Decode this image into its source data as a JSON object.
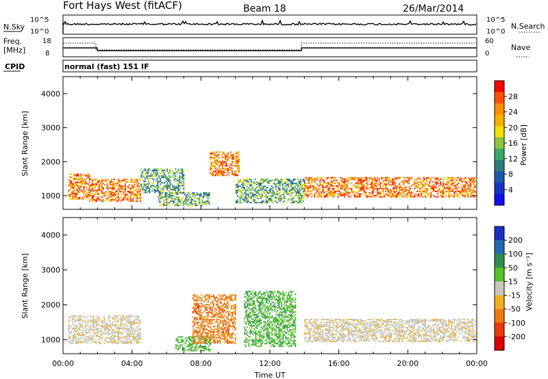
{
  "header": {
    "station": "Fort Hays West (fitACF)",
    "beam": "Beam 18",
    "date": "26/Mar/2014"
  },
  "status_panels": {
    "nsky": {
      "label": "N.Sky",
      "right_label": "N.Search",
      "left_ticks": [
        "10^5",
        "10^0"
      ],
      "right_ticks": [
        "10^5",
        "10^0"
      ]
    },
    "freq": {
      "label_line1": "Freq.",
      "label_line2": "[MHz]",
      "right_label": "Nave",
      "left_ticks": [
        "18",
        "8"
      ],
      "right_ticks": [
        "60",
        "0"
      ]
    },
    "cpid_label": "CPID",
    "cpid_text": "normal (fast) 151 IF"
  },
  "chart_data": [
    {
      "type": "heatmap",
      "name": "power",
      "ylabel": "Slant Range [km]",
      "xlabel": "",
      "yticks": [
        "4000",
        "3000",
        "2000",
        "1000"
      ],
      "ylim": [
        600,
        4500
      ],
      "xlim": [
        0,
        24
      ],
      "colorbar": {
        "label": "Power [dB]",
        "ticks": [
          "28",
          "24",
          "20",
          "16",
          "12",
          "8",
          "4"
        ],
        "colors": [
          "#ff0000",
          "#ff5000",
          "#ff8c00",
          "#f5b000",
          "#f2e000",
          "#8bc53f",
          "#3aa66a",
          "#2b7f7a",
          "#1e57a8",
          "#1434c8",
          "#1010e6"
        ]
      },
      "bands": [
        {
          "t0": 0.3,
          "t1": 1.5,
          "r0": 900,
          "r1": 1650,
          "level": "strong"
        },
        {
          "t0": 1.5,
          "t1": 4.5,
          "r0": 850,
          "r1": 1500,
          "level": "strong"
        },
        {
          "t0": 4.5,
          "t1": 7.0,
          "r0": 1100,
          "r1": 1800,
          "level": "medium"
        },
        {
          "t0": 5.5,
          "t1": 8.5,
          "r0": 700,
          "r1": 1100,
          "level": "medium"
        },
        {
          "t0": 8.5,
          "t1": 10.2,
          "r0": 1600,
          "r1": 2300,
          "level": "strong"
        },
        {
          "t0": 10.0,
          "t1": 14.0,
          "r0": 800,
          "r1": 1500,
          "level": "medium"
        },
        {
          "t0": 14.0,
          "t1": 23.9,
          "r0": 950,
          "r1": 1550,
          "level": "strong"
        }
      ]
    },
    {
      "type": "heatmap",
      "name": "velocity",
      "ylabel": "Slant Range [km]",
      "xlabel": "Time UT",
      "yticks": [
        "4000",
        "3000",
        "2000",
        "1000"
      ],
      "xticks": [
        "00:00",
        "04:00",
        "08:00",
        "12:00",
        "16:00",
        "20:00",
        "00:00"
      ],
      "ylim": [
        600,
        4500
      ],
      "xlim": [
        0,
        24
      ],
      "colorbar": {
        "label": "Velocity [m s⁻¹]",
        "ticks": [
          "200",
          "100",
          "50",
          "15",
          "-15",
          "-50",
          "-100",
          "-200"
        ],
        "colors": [
          "#1a2fbf",
          "#1f6bb0",
          "#2f8f4a",
          "#55c22b",
          "#c8c8c0",
          "#f2b01e",
          "#f07a10",
          "#e83a0a",
          "#dd0000"
        ]
      },
      "bands": [
        {
          "t0": 0.3,
          "t1": 4.5,
          "r0": 900,
          "r1": 1700,
          "level": "ground"
        },
        {
          "t0": 6.5,
          "t1": 8.5,
          "r0": 700,
          "r1": 1100,
          "level": "positive"
        },
        {
          "t0": 7.5,
          "t1": 10.0,
          "r0": 900,
          "r1": 2300,
          "level": "negative"
        },
        {
          "t0": 10.5,
          "t1": 13.5,
          "r0": 800,
          "r1": 2400,
          "level": "positive"
        },
        {
          "t0": 14.0,
          "t1": 23.9,
          "r0": 950,
          "r1": 1600,
          "level": "ground"
        }
      ]
    }
  ]
}
